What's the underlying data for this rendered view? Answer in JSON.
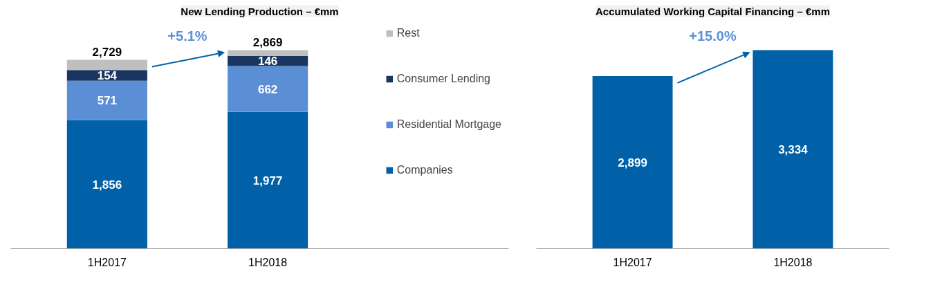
{
  "chart_data": [
    {
      "type": "bar",
      "title": "New Lending Production – €mm",
      "categories": [
        "1H2017",
        "1H2018"
      ],
      "stacked": true,
      "tick_labels": "x",
      "grid": false,
      "legend": "right",
      "series": [
        {
          "name": "Companies",
          "color": "#0060a8",
          "values": [
            1856,
            1977
          ],
          "value_labels": [
            "1,856",
            "1,977"
          ]
        },
        {
          "name": "Residential Mortgage",
          "color": "#5a8fd6",
          "values": [
            571,
            662
          ],
          "value_labels": [
            "571",
            "662"
          ]
        },
        {
          "name": "Consumer Lending",
          "color": "#1a3660",
          "values": [
            154,
            146
          ],
          "value_labels": [
            "154",
            "146"
          ]
        },
        {
          "name": "Rest",
          "color": "#bfbfbf",
          "values": [
            148,
            84
          ],
          "value_labels": [
            null,
            null
          ]
        }
      ],
      "totals": [
        "2,729",
        "2,869"
      ],
      "annotations": [
        "+5.1%"
      ]
    },
    {
      "type": "bar",
      "title": "Accumulated Working Capital Financing – €mm",
      "categories": [
        "1H2017",
        "1H2018"
      ],
      "tick_labels": "x",
      "grid": false,
      "legend": false,
      "series": [
        {
          "color": "#0060a8",
          "values": [
            2899,
            3334
          ],
          "value_labels": [
            "2,899",
            "3,334"
          ]
        }
      ],
      "annotations": [
        "+15.0%"
      ]
    }
  ]
}
